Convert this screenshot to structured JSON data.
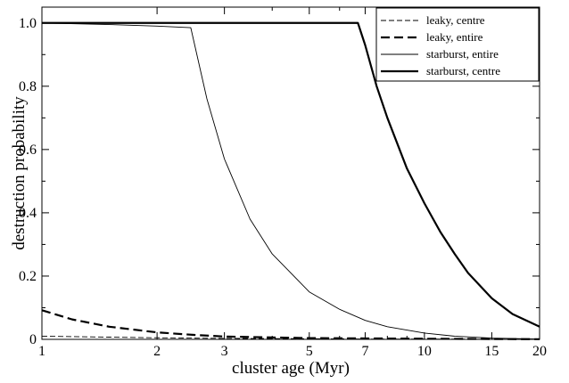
{
  "chart_data": {
    "type": "line",
    "xlabel": "cluster age (Myr)",
    "ylabel": "destruction probability",
    "xscale": "log",
    "xlim": [
      1,
      20
    ],
    "ylim": [
      0,
      1.05
    ],
    "xticks": [
      1,
      2,
      3,
      5,
      7,
      10,
      15,
      20
    ],
    "xtick_labels": [
      "1",
      "2",
      "3",
      "5",
      "7",
      "10",
      "15",
      "20"
    ],
    "yticks": [
      0,
      0.2,
      0.4,
      0.6,
      0.8,
      1.0
    ],
    "ytick_labels": [
      "0",
      "0.2",
      "0.4",
      "0.6",
      "0.8",
      "1.0"
    ],
    "grid": false,
    "legend_position": "top-right",
    "series": [
      {
        "name": "leaky, centre",
        "style": "thin-dashed",
        "color": "#000000",
        "x": [
          1,
          1.5,
          2,
          3,
          5,
          7,
          10,
          15,
          20
        ],
        "y": [
          0.01,
          0.007,
          0.005,
          0.003,
          0.002,
          0.001,
          0.001,
          0.0005,
          0.0003
        ]
      },
      {
        "name": "leaky, entire",
        "style": "thick-dashed",
        "color": "#000000",
        "x": [
          1,
          1.2,
          1.5,
          2,
          2.5,
          3,
          4,
          5,
          7,
          10,
          15,
          20
        ],
        "y": [
          0.092,
          0.063,
          0.04,
          0.022,
          0.014,
          0.009,
          0.006,
          0.004,
          0.003,
          0.002,
          0.001,
          0.0005
        ]
      },
      {
        "name": "starburst, entire",
        "style": "thin-solid",
        "color": "#000000",
        "x": [
          1,
          1.5,
          2,
          2.45,
          2.7,
          3,
          3.5,
          4,
          5,
          6,
          7,
          8,
          10,
          12,
          15,
          20
        ],
        "y": [
          1.0,
          0.995,
          0.99,
          0.985,
          0.76,
          0.57,
          0.38,
          0.27,
          0.15,
          0.095,
          0.06,
          0.04,
          0.02,
          0.01,
          0.004,
          0.001
        ]
      },
      {
        "name": "starburst, centre",
        "style": "thick-solid",
        "color": "#000000",
        "x": [
          1,
          2,
          3,
          5,
          6.7,
          7,
          7.5,
          8,
          9,
          10,
          11,
          12,
          13,
          15,
          17,
          20
        ],
        "y": [
          1.0,
          1.0,
          1.0,
          1.0,
          1.0,
          0.93,
          0.8,
          0.7,
          0.54,
          0.43,
          0.34,
          0.27,
          0.21,
          0.13,
          0.08,
          0.04
        ]
      }
    ]
  }
}
